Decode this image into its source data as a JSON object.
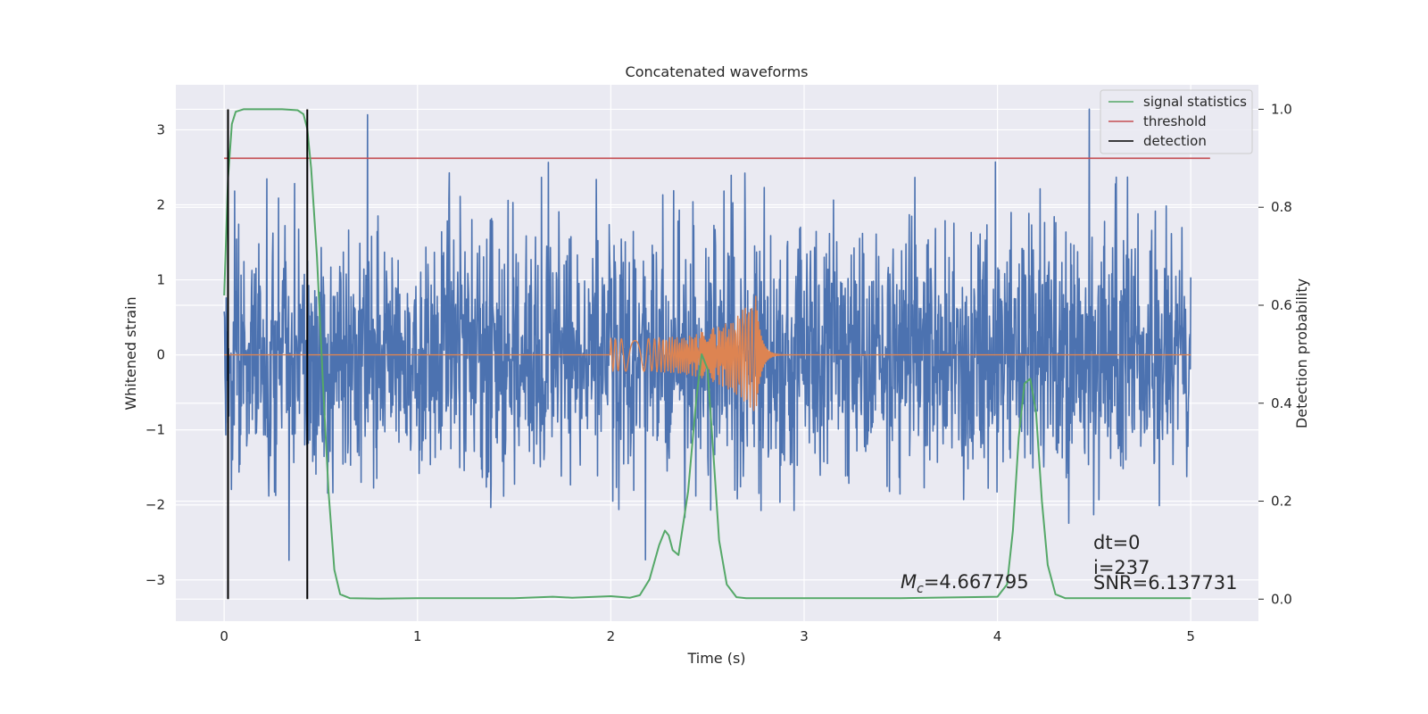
{
  "chart_data": {
    "type": "line",
    "title": "Concatenated waveforms",
    "xlabel": "Time (s)",
    "ylabel": "Whitened strain",
    "y2label": "Detection probability",
    "xlim": [
      -0.25,
      5.35
    ],
    "ylim": [
      -3.55,
      3.6
    ],
    "y2lim": [
      -0.045,
      1.05
    ],
    "x_ticks": [
      0,
      1,
      2,
      3,
      4,
      5
    ],
    "y_ticks": [
      -3,
      -2,
      -1,
      0,
      1,
      2,
      3
    ],
    "y2_ticks": [
      0.0,
      0.2,
      0.4,
      0.6,
      0.8,
      1.0
    ],
    "x_tick_labels": [
      "0",
      "1",
      "2",
      "3",
      "4",
      "5"
    ],
    "y_tick_labels": [
      "−3",
      "−2",
      "−1",
      "0",
      "1",
      "2",
      "3"
    ],
    "y2_tick_labels": [
      "0.0",
      "0.2",
      "0.4",
      "0.6",
      "0.8",
      "1.0"
    ],
    "grid": true,
    "legend_position": "top-right",
    "colors": {
      "strain": "#4c72b0",
      "injection": "#dd8452",
      "signal_statistics": "#55a868",
      "threshold": "#c44e52",
      "detection": "#000000",
      "plot_bg": "#eaeaf2",
      "grid": "#ffffff"
    },
    "series": [
      {
        "name": "signal statistics",
        "axis": "right",
        "color": "#55a868",
        "x": [
          0.0,
          0.02,
          0.04,
          0.06,
          0.1,
          0.2,
          0.3,
          0.38,
          0.41,
          0.43,
          0.45,
          0.48,
          0.51,
          0.54,
          0.57,
          0.6,
          0.65,
          0.8,
          1.0,
          1.5,
          1.7,
          1.8,
          2.0,
          2.1,
          2.15,
          2.2,
          2.25,
          2.28,
          2.3,
          2.32,
          2.35,
          2.4,
          2.44,
          2.47,
          2.5,
          2.53,
          2.56,
          2.6,
          2.65,
          2.7,
          3.0,
          3.5,
          4.0,
          4.05,
          4.08,
          4.11,
          4.14,
          4.17,
          4.2,
          4.23,
          4.26,
          4.3,
          4.35,
          5.0
        ],
        "values": [
          0.62,
          0.86,
          0.97,
          0.995,
          1.0,
          1.0,
          1.0,
          0.998,
          0.99,
          0.96,
          0.88,
          0.7,
          0.45,
          0.22,
          0.06,
          0.01,
          0.002,
          0.001,
          0.002,
          0.002,
          0.005,
          0.003,
          0.006,
          0.003,
          0.008,
          0.04,
          0.11,
          0.14,
          0.13,
          0.1,
          0.09,
          0.22,
          0.4,
          0.5,
          0.47,
          0.3,
          0.12,
          0.03,
          0.004,
          0.002,
          0.002,
          0.002,
          0.005,
          0.03,
          0.14,
          0.33,
          0.44,
          0.45,
          0.38,
          0.2,
          0.07,
          0.01,
          0.002,
          0.002
        ]
      },
      {
        "name": "threshold",
        "axis": "right",
        "color": "#c44e52",
        "x": [
          0.0,
          5.1
        ],
        "values": [
          0.9,
          0.9
        ]
      },
      {
        "name": "detection",
        "axis": "right",
        "color": "#000000",
        "x_positions": [
          0.02,
          0.43
        ],
        "range": [
          0.0,
          1.0
        ]
      },
      {
        "axis": "left",
        "color": "#4c72b0",
        "kind": "noise",
        "x_range": [
          0.0,
          5.0
        ],
        "envelope_pos_max": 3.3,
        "envelope_neg_min": -3.2
      },
      {
        "axis": "left",
        "color": "#dd8452",
        "kind": "chirp",
        "x_range": [
          0.0,
          5.0
        ],
        "chirp_start": 2.0,
        "chirp_merger": 2.75,
        "amplitude_start": 0.22,
        "amplitude_peak": 0.78
      }
    ],
    "legend": [
      "signal statistics",
      "threshold",
      "detection"
    ],
    "annotations": {
      "mc_prefix": "M",
      "mc_subscript": "c",
      "mc_value": "=4.667795",
      "dt": "dt=0",
      "i": "i=237",
      "snr": "SNR=6.137731"
    }
  }
}
